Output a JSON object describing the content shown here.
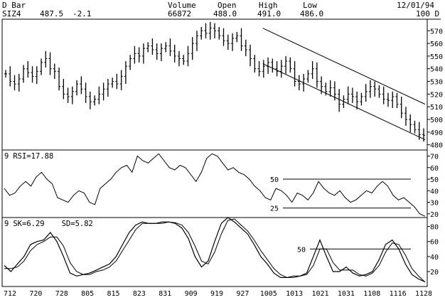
{
  "header": {
    "chart_kind": "D Bar",
    "symbol": "SIZ4",
    "last": "487.5",
    "change": "-2.1",
    "volume_label": "Volume",
    "volume_value": "66872",
    "open_label": "Open",
    "open_value": "488.0",
    "high_label": "High",
    "high_value": "491.0",
    "low_label": "Low",
    "low_value": "486.0",
    "date": "12/01/94",
    "bars": "100 D"
  },
  "chart_data": [
    {
      "type": "bar",
      "panel": "price",
      "title": "",
      "ylim": [
        477,
        578
      ],
      "yticks": [
        570,
        560,
        550,
        540,
        530,
        520,
        510,
        500,
        490,
        480
      ],
      "x_date_labels": [
        "712",
        "720",
        "728",
        "805",
        "815",
        "823",
        "831",
        "909",
        "919",
        "927",
        "1005",
        "1013",
        "1021",
        "1031",
        "1108",
        "1116",
        "1128"
      ],
      "closes": [
        536,
        530,
        528,
        532,
        540,
        537,
        534,
        538,
        545,
        548,
        540,
        538,
        526,
        520,
        518,
        522,
        528,
        524,
        518,
        514,
        516,
        520,
        524,
        528,
        530,
        528,
        534,
        542,
        548,
        552,
        550,
        556,
        558,
        555,
        552,
        556,
        558,
        554,
        550,
        548,
        546,
        552,
        560,
        566,
        570,
        568,
        572,
        570,
        566,
        562,
        560,
        564,
        566,
        558,
        555,
        548,
        540,
        538,
        542,
        545,
        540,
        538,
        542,
        546,
        540,
        530,
        528,
        532,
        536,
        540,
        530,
        526,
        522,
        525,
        520,
        512,
        516,
        520,
        518,
        514,
        518,
        522,
        526,
        524,
        520,
        516,
        515,
        518,
        512,
        505,
        500,
        496,
        492,
        488,
        487.5
      ],
      "channel_lines": [
        {
          "name": "upper",
          "from": [
            "1005",
            572
          ],
          "to": [
            "1128",
            512
          ]
        },
        {
          "name": "lower",
          "from": [
            "1005",
            544
          ],
          "to": [
            "1128",
            484
          ]
        }
      ]
    },
    {
      "type": "line",
      "panel": "rsi",
      "series": [
        {
          "name": "RSI",
          "period": "9",
          "last": "17.88"
        }
      ],
      "ylim": [
        18,
        74
      ],
      "yticks": [
        70,
        60,
        50,
        40,
        30,
        20
      ],
      "reference_lines": [
        {
          "value": 50,
          "label": "50"
        },
        {
          "value": 25,
          "label": "25"
        }
      ],
      "values": [
        42,
        36,
        38,
        44,
        48,
        44,
        52,
        56,
        50,
        46,
        34,
        32,
        30,
        36,
        40,
        38,
        30,
        28,
        42,
        46,
        50,
        56,
        60,
        62,
        56,
        70,
        66,
        64,
        68,
        72,
        66,
        60,
        58,
        62,
        60,
        54,
        48,
        56,
        68,
        72,
        70,
        64,
        58,
        60,
        56,
        54,
        50,
        44,
        40,
        34,
        32,
        42,
        40,
        36,
        30,
        38,
        36,
        32,
        38,
        48,
        42,
        38,
        36,
        40,
        34,
        30,
        32,
        36,
        40,
        38,
        44,
        48,
        44,
        36,
        32,
        34,
        30,
        26,
        20,
        17.88
      ]
    },
    {
      "type": "line",
      "panel": "stochastic",
      "series": [
        {
          "name": "SK",
          "last": "6.29",
          "values": [
            28,
            20,
            30,
            40,
            56,
            60,
            62,
            72,
            60,
            40,
            18,
            14,
            16,
            18,
            22,
            26,
            30,
            40,
            56,
            72,
            82,
            86,
            84,
            84,
            86,
            86,
            84,
            78,
            64,
            40,
            26,
            34,
            60,
            84,
            92,
            86,
            78,
            70,
            56,
            40,
            30,
            18,
            12,
            12,
            14,
            14,
            18,
            40,
            62,
            40,
            20,
            20,
            26,
            18,
            14,
            16,
            20,
            36,
            56,
            62,
            50,
            30,
            16,
            10,
            6.29
          ]
        },
        {
          "name": "SD",
          "last": "5.82",
          "values": [
            24,
            24,
            26,
            34,
            48,
            56,
            60,
            66,
            66,
            54,
            32,
            20,
            16,
            16,
            20,
            22,
            26,
            34,
            48,
            62,
            76,
            84,
            84,
            84,
            84,
            86,
            85,
            82,
            72,
            54,
            34,
            30,
            46,
            70,
            88,
            90,
            82,
            74,
            62,
            48,
            36,
            24,
            16,
            12,
            12,
            14,
            16,
            28,
            50,
            50,
            32,
            22,
            22,
            22,
            16,
            14,
            18,
            28,
            46,
            58,
            56,
            42,
            24,
            14,
            5.82
          ]
        }
      ],
      "ylim": [
        2,
        90
      ],
      "yticks": [
        80,
        60,
        40,
        20
      ],
      "reference_lines": [
        {
          "value": 50,
          "label": "50"
        }
      ]
    }
  ],
  "labels": {
    "rsi_prefix": "9",
    "rsi_name": "RSI",
    "stoch_prefix": "9",
    "sk_name": "SK",
    "sd_name": "SD"
  }
}
